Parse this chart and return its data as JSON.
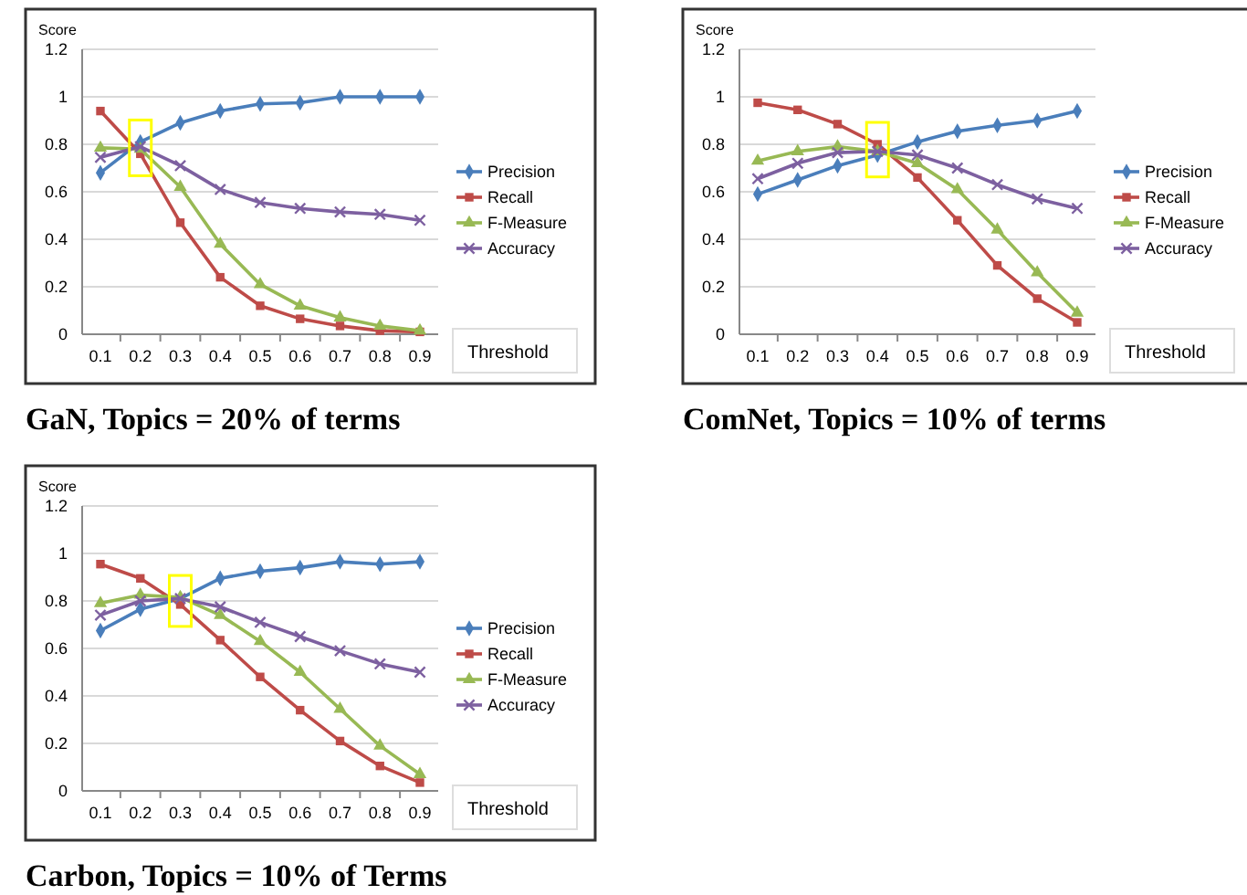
{
  "chart_data": [
    {
      "type": "line",
      "title": "GaN, Topics = 20% of terms",
      "xlabel": "Threshold",
      "ylabel": "Score",
      "categories": [
        "0.1",
        "0.2",
        "0.3",
        "0.4",
        "0.5",
        "0.6",
        "0.7",
        "0.8",
        "0.9"
      ],
      "ylim": [
        0,
        1.2
      ],
      "yticks": [
        0,
        0.2,
        0.4,
        0.6,
        0.8,
        1,
        1.2
      ],
      "grid": "y",
      "legend": "right",
      "series": [
        {
          "name": "Precision",
          "color": "#4a7ebb",
          "marker": "diamond",
          "values": [
            0.68,
            0.81,
            0.89,
            0.94,
            0.97,
            0.975,
            1,
            1,
            1
          ]
        },
        {
          "name": "Recall",
          "color": "#be4b48",
          "marker": "square",
          "values": [
            0.94,
            0.76,
            0.47,
            0.24,
            0.12,
            0.065,
            0.035,
            0.015,
            0.01
          ]
        },
        {
          "name": "F-Measure",
          "color": "#98b954",
          "marker": "triangle",
          "values": [
            0.785,
            0.78,
            0.62,
            0.38,
            0.21,
            0.12,
            0.07,
            0.035,
            0.015
          ]
        },
        {
          "name": "Accuracy",
          "color": "#7d60a0",
          "marker": "cross",
          "values": [
            0.745,
            0.79,
            0.71,
            0.61,
            0.555,
            0.53,
            0.515,
            0.505,
            0.48
          ]
        }
      ]
    },
    {
      "type": "line",
      "title": "ComNet, Topics = 10% of terms",
      "xlabel": "Threshold",
      "ylabel": "Score",
      "categories": [
        "0.1",
        "0.2",
        "0.3",
        "0.4",
        "0.5",
        "0.6",
        "0.7",
        "0.8",
        "0.9"
      ],
      "ylim": [
        0,
        1.2
      ],
      "yticks": [
        0,
        0.2,
        0.4,
        0.6,
        0.8,
        1,
        1.2
      ],
      "grid": "y",
      "legend": "right",
      "series": [
        {
          "name": "Precision",
          "color": "#4a7ebb",
          "marker": "diamond",
          "values": [
            0.59,
            0.65,
            0.71,
            0.755,
            0.81,
            0.855,
            0.88,
            0.9,
            0.94
          ]
        },
        {
          "name": "Recall",
          "color": "#be4b48",
          "marker": "square",
          "values": [
            0.975,
            0.945,
            0.885,
            0.8,
            0.66,
            0.48,
            0.29,
            0.15,
            0.05
          ]
        },
        {
          "name": "F-Measure",
          "color": "#98b954",
          "marker": "triangle",
          "values": [
            0.73,
            0.77,
            0.79,
            0.77,
            0.72,
            0.61,
            0.44,
            0.26,
            0.09
          ]
        },
        {
          "name": "Accuracy",
          "color": "#7d60a0",
          "marker": "cross",
          "values": [
            0.655,
            0.72,
            0.765,
            0.77,
            0.755,
            0.7,
            0.63,
            0.57,
            0.53
          ]
        }
      ]
    },
    {
      "type": "line",
      "title": "Carbon, Topics = 10% of Terms",
      "xlabel": "Threshold",
      "ylabel": "Score",
      "categories": [
        "0.1",
        "0.2",
        "0.3",
        "0.4",
        "0.5",
        "0.6",
        "0.7",
        "0.8",
        "0.9"
      ],
      "ylim": [
        0,
        1.2
      ],
      "yticks": [
        0,
        0.2,
        0.4,
        0.6,
        0.8,
        1,
        1.2
      ],
      "grid": "y",
      "legend": "right",
      "series": [
        {
          "name": "Precision",
          "color": "#4a7ebb",
          "marker": "diamond",
          "values": [
            0.675,
            0.765,
            0.81,
            0.895,
            0.925,
            0.94,
            0.965,
            0.955,
            0.965
          ]
        },
        {
          "name": "Recall",
          "color": "#be4b48",
          "marker": "square",
          "values": [
            0.955,
            0.895,
            0.785,
            0.635,
            0.48,
            0.34,
            0.21,
            0.105,
            0.035
          ]
        },
        {
          "name": "F-Measure",
          "color": "#98b954",
          "marker": "triangle",
          "values": [
            0.79,
            0.825,
            0.815,
            0.74,
            0.63,
            0.5,
            0.345,
            0.19,
            0.07
          ]
        },
        {
          "name": "Accuracy",
          "color": "#7d60a0",
          "marker": "cross",
          "values": [
            0.74,
            0.8,
            0.81,
            0.775,
            0.71,
            0.65,
            0.59,
            0.535,
            0.5
          ]
        }
      ]
    }
  ]
}
